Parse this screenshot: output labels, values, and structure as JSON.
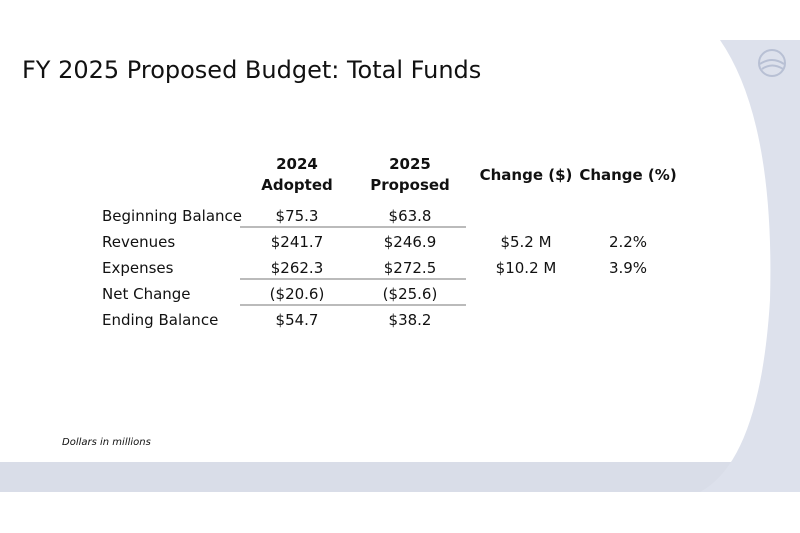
{
  "header": {
    "title": "FY 2025 Proposed Budget: Total Funds"
  },
  "table": {
    "columns": [
      "2024\nAdopted",
      "2025\nProposed",
      "Change ($)",
      "Change (%)"
    ],
    "rows": [
      {
        "label": "Beginning Balance",
        "adopted_2024": "$75.3",
        "proposed_2025": "$63.8"
      },
      {
        "label": "Revenues",
        "adopted_2024": "$241.7",
        "proposed_2025": "$246.9",
        "change_dollars": "$5.2 M",
        "change_percent": "2.2%"
      },
      {
        "label": "Expenses",
        "adopted_2024": "$262.3",
        "proposed_2025": "$272.5",
        "change_dollars": "$10.2 M",
        "change_percent": "3.9%"
      },
      {
        "label": "Net Change",
        "adopted_2024": "($20.6)",
        "proposed_2025": "($25.6)"
      },
      {
        "label": "Ending Balance",
        "adopted_2024": "$54.7",
        "proposed_2025": "$38.2"
      }
    ]
  },
  "footnote": "Dollars in millions"
}
